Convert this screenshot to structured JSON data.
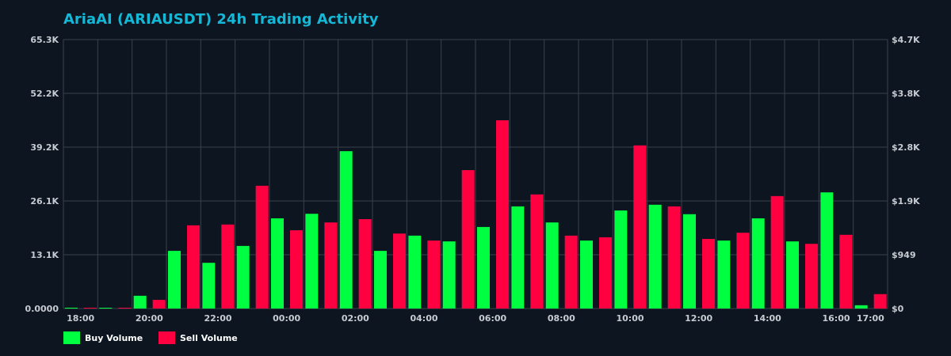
{
  "chart_data": {
    "type": "bar",
    "title": "AriaAI (ARIAUSDT) 24h Trading Activity",
    "categories": [
      "18:00",
      "19:00",
      "20:00",
      "21:00",
      "22:00",
      "23:00",
      "00:00",
      "01:00",
      "02:00",
      "03:00",
      "04:00",
      "05:00",
      "06:00",
      "07:00",
      "08:00",
      "09:00",
      "10:00",
      "11:00",
      "12:00",
      "13:00",
      "14:00",
      "15:00",
      "16:00",
      "17:00"
    ],
    "x_tick_labels": [
      "18:00",
      "20:00",
      "22:00",
      "00:00",
      "02:00",
      "04:00",
      "06:00",
      "08:00",
      "10:00",
      "12:00",
      "14:00",
      "16:00",
      "17:00"
    ],
    "series": [
      {
        "name": "Buy Volume",
        "color": "#00ff41",
        "values": [
          200,
          150,
          3100,
          14000,
          11100,
          15200,
          21900,
          23000,
          38200,
          14000,
          17700,
          16300,
          19800,
          24800,
          20900,
          16500,
          23800,
          25200,
          22900,
          16500,
          21900,
          16300,
          28200,
          800
        ]
      },
      {
        "name": "Sell Volume",
        "color": "#ff0040",
        "values": [
          150,
          100,
          2100,
          20200,
          20400,
          29800,
          19000,
          20900,
          21700,
          18200,
          16500,
          33600,
          45700,
          27700,
          17700,
          17300,
          39600,
          24800,
          16900,
          18400,
          27300,
          15700,
          17900,
          3500
        ]
      }
    ],
    "ylim": [
      0,
      65300
    ],
    "y_tick_labels": [
      "0.0000",
      "13.1K",
      "26.1K",
      "39.2K",
      "52.2K",
      "65.3K"
    ],
    "y2lim": [
      0,
      4700
    ],
    "y2_tick_labels": [
      "$0",
      "$949",
      "$1.9K",
      "$2.8K",
      "$3.8K",
      "$4.7K"
    ],
    "grid": true,
    "legend": "bottom-left",
    "background": "#0c1520",
    "grid_color": "#3a424c"
  }
}
